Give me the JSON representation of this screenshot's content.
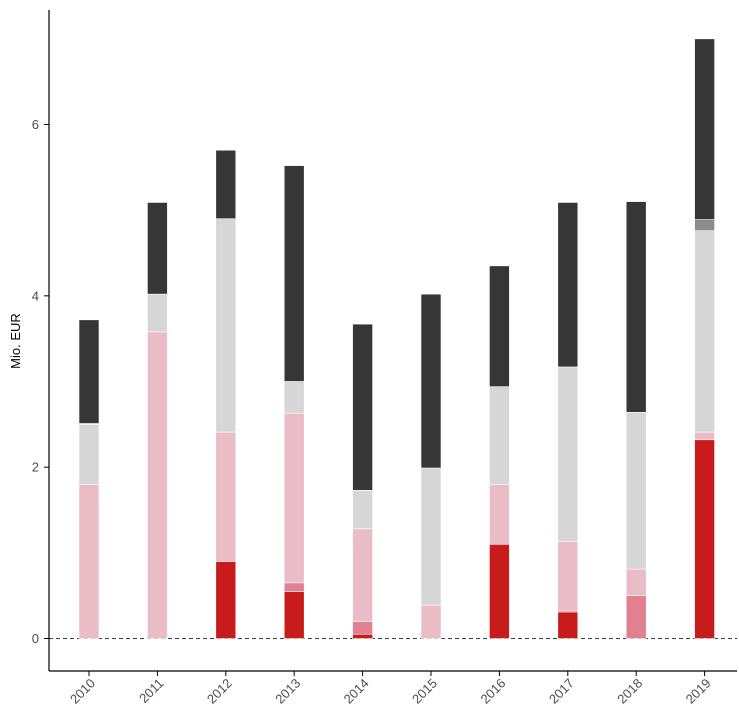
{
  "chart_data": {
    "type": "bar",
    "stacked": true,
    "title": "",
    "xlabel": "",
    "ylabel": "Mio. EUR",
    "ylim": [
      0,
      7.2
    ],
    "yticks": [
      0,
      2,
      4,
      6
    ],
    "grid": false,
    "legend": "none",
    "zero_line": "dashed",
    "categories": [
      "2010",
      "2011",
      "2012",
      "2013",
      "2014",
      "2015",
      "2016",
      "2017",
      "2018",
      "2019"
    ],
    "series": [
      {
        "color": "#c81b1b",
        "values": [
          0,
          0,
          0.9,
          0.55,
          0.05,
          0,
          1.1,
          0.31,
          0,
          2.32
        ]
      },
      {
        "color": "#e08090",
        "values": [
          0,
          0,
          0,
          0.1,
          0.15,
          0,
          0,
          0.02,
          0.5,
          0
        ]
      },
      {
        "color": "#eabcc6",
        "values": [
          1.8,
          3.58,
          1.51,
          1.98,
          1.08,
          0.39,
          0.7,
          0.8,
          0.31,
          0.09
        ]
      },
      {
        "color": "#d6d6d6",
        "values": [
          0.7,
          0.44,
          2.49,
          0.37,
          0.45,
          1.6,
          1.14,
          2.04,
          1.83,
          2.35
        ]
      },
      {
        "color": "#8c8c8c",
        "values": [
          0.01,
          0,
          0,
          0,
          0,
          0,
          0,
          0,
          0,
          0.13
        ]
      },
      {
        "color": "#363636",
        "values": [
          1.21,
          1.07,
          0.8,
          2.52,
          1.94,
          2.03,
          1.41,
          1.92,
          2.46,
          2.11
        ]
      }
    ]
  }
}
